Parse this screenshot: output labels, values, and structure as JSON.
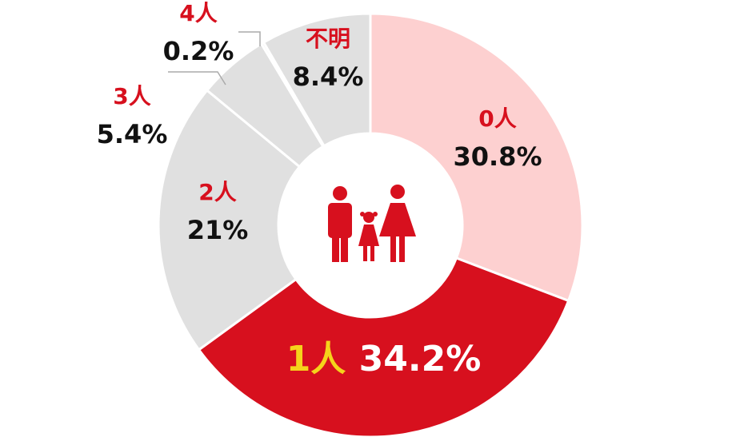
{
  "chart_data": {
    "type": "pie",
    "categories": [
      "0人",
      "1人",
      "2人",
      "3人",
      "4人",
      "不明"
    ],
    "values": [
      30.8,
      34.2,
      21,
      5.4,
      0.2,
      8.4
    ],
    "value_labels": [
      "30.8%",
      "34.2%",
      "21%",
      "5.4%",
      "0.2%",
      "8.4%"
    ],
    "colors": [
      "#fdd0d0",
      "#d7101e",
      "#e0e0e0",
      "#e0e0e0",
      "#e0e0e0",
      "#e0e0e0"
    ]
  }
}
